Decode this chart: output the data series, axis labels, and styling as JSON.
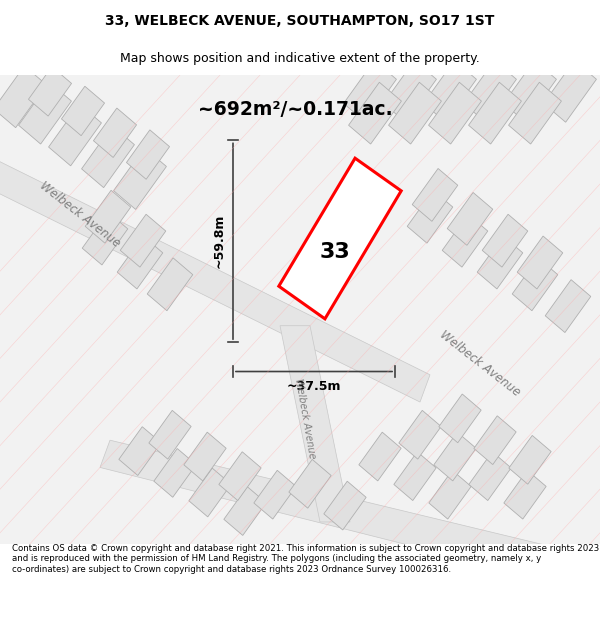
{
  "title": "33, WELBECK AVENUE, SOUTHAMPTON, SO17 1ST",
  "subtitle": "Map shows position and indicative extent of the property.",
  "area_text": "~692m²/~0.171ac.",
  "label_number": "33",
  "dim_height": "~59.8m",
  "dim_width": "~37.5m",
  "road_label_upper": "Welbeck Avenue",
  "road_label_lower": "Welbeck Avenue",
  "road_label_vertical": "Welbeck Avenue",
  "footer_text": "Contains OS data © Crown copyright and database right 2021. This information is subject to Crown copyright and database rights 2023 and is reproduced with the permission of HM Land Registry. The polygons (including the associated geometry, namely x, y co-ordinates) are subject to Crown copyright and database rights 2023 Ordnance Survey 100026316.",
  "bg_color": "#ffffff",
  "map_bg": "#f5f5f5",
  "road_color": "#e8e8e8",
  "building_fill": "#e0e0e0",
  "building_edge": "#c8c8c8",
  "highlight_fill": "#ffffff",
  "highlight_edge": "#ff0000",
  "road_line_color": "#d0d0d0",
  "dim_line_color": "#404040",
  "text_color": "#000000",
  "road_text_color": "#909090",
  "figsize": [
    6.0,
    6.25
  ],
  "dpi": 100
}
